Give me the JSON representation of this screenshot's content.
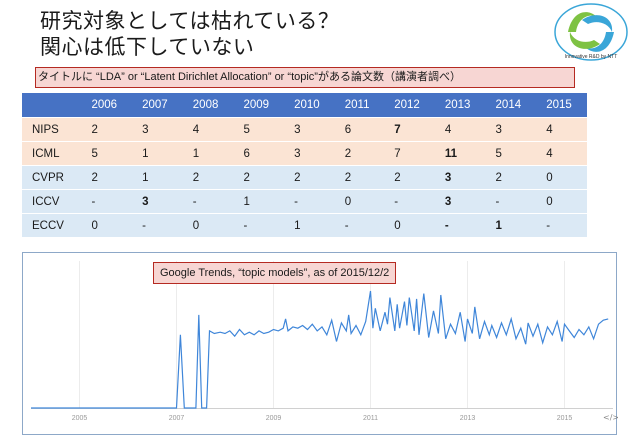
{
  "title_line1": "研究対象としては枯れている？",
  "title_line2": "関心は低下していない",
  "logo_text": "Innovative R&D by NTT",
  "note": "タイトルに “LDA” or “Latent Dirichlet Allocation” or “topic”がある論文数（講演者調べ）",
  "table": {
    "header": [
      "",
      "2006",
      "2007",
      "2008",
      "2009",
      "2010",
      "2011",
      "2012",
      "2013",
      "2014",
      "2015"
    ],
    "rows": [
      [
        "NIPS",
        "2",
        "3",
        "4",
        "5",
        "3",
        "6",
        "7",
        "4",
        "3",
        "4"
      ],
      [
        "ICML",
        "5",
        "1",
        "1",
        "6",
        "3",
        "2",
        "7",
        "11",
        "5",
        "4"
      ],
      [
        "CVPR",
        "2",
        "1",
        "2",
        "2",
        "2",
        "2",
        "2",
        "3",
        "2",
        "0"
      ],
      [
        "ICCV",
        "-",
        "3",
        "-",
        "1",
        "-",
        "0",
        "-",
        "3",
        "-",
        "0"
      ],
      [
        "ECCV",
        "0",
        "-",
        "0",
        "-",
        "1",
        "-",
        "0",
        "-",
        "1",
        "-"
      ]
    ],
    "bold": [
      [
        0,
        7
      ],
      [
        1,
        8
      ],
      [
        2,
        8
      ],
      [
        3,
        2
      ],
      [
        3,
        8
      ],
      [
        4,
        8
      ],
      [
        4,
        9
      ]
    ]
  },
  "trends_label": "Google Trends, “topic models”, as of 2015/12/2",
  "chart_data": {
    "type": "line",
    "title": "Google Trends, “topic models”, as of 2015/12/2",
    "x_ticks": [
      "2005",
      "2007",
      "2009",
      "2011",
      "2013",
      "2015"
    ],
    "x_range": [
      2004.0,
      2016.0
    ],
    "y_range": [
      0,
      100
    ],
    "series": [
      {
        "values": [
          [
            2004.0,
            0
          ],
          [
            2007.0,
            0
          ],
          [
            2007.08,
            55
          ],
          [
            2007.16,
            0
          ],
          [
            2007.4,
            0
          ],
          [
            2007.46,
            70
          ],
          [
            2007.52,
            0
          ],
          [
            2007.62,
            0
          ],
          [
            2007.68,
            58
          ],
          [
            2007.78,
            56
          ],
          [
            2007.9,
            57
          ],
          [
            2008.0,
            56
          ],
          [
            2008.1,
            58
          ],
          [
            2008.2,
            54
          ],
          [
            2008.3,
            59
          ],
          [
            2008.4,
            55
          ],
          [
            2008.5,
            57
          ],
          [
            2008.6,
            55
          ],
          [
            2008.7,
            58
          ],
          [
            2008.8,
            56
          ],
          [
            2008.9,
            57
          ],
          [
            2009.0,
            59
          ],
          [
            2009.1,
            58
          ],
          [
            2009.2,
            60
          ],
          [
            2009.25,
            67
          ],
          [
            2009.3,
            58
          ],
          [
            2009.4,
            61
          ],
          [
            2009.5,
            60
          ],
          [
            2009.6,
            62
          ],
          [
            2009.7,
            59
          ],
          [
            2009.8,
            63
          ],
          [
            2009.9,
            58
          ],
          [
            2010.0,
            61
          ],
          [
            2010.1,
            55
          ],
          [
            2010.2,
            66
          ],
          [
            2010.3,
            50
          ],
          [
            2010.4,
            64
          ],
          [
            2010.5,
            58
          ],
          [
            2010.55,
            70
          ],
          [
            2010.6,
            56
          ],
          [
            2010.7,
            62
          ],
          [
            2010.8,
            55
          ],
          [
            2010.9,
            65
          ],
          [
            2011.0,
            88
          ],
          [
            2011.05,
            60
          ],
          [
            2011.1,
            75
          ],
          [
            2011.2,
            58
          ],
          [
            2011.3,
            72
          ],
          [
            2011.35,
            63
          ],
          [
            2011.4,
            83
          ],
          [
            2011.5,
            58
          ],
          [
            2011.55,
            78
          ],
          [
            2011.6,
            60
          ],
          [
            2011.7,
            80
          ],
          [
            2011.75,
            62
          ],
          [
            2011.8,
            83
          ],
          [
            2011.9,
            58
          ],
          [
            2011.95,
            82
          ],
          [
            2012.0,
            55
          ],
          [
            2012.1,
            86
          ],
          [
            2012.2,
            53
          ],
          [
            2012.3,
            73
          ],
          [
            2012.4,
            56
          ],
          [
            2012.45,
            85
          ],
          [
            2012.55,
            52
          ],
          [
            2012.65,
            63
          ],
          [
            2012.75,
            56
          ],
          [
            2012.85,
            72
          ],
          [
            2012.95,
            50
          ],
          [
            2013.0,
            67
          ],
          [
            2013.1,
            56
          ],
          [
            2013.15,
            76
          ],
          [
            2013.25,
            52
          ],
          [
            2013.35,
            65
          ],
          [
            2013.45,
            55
          ],
          [
            2013.5,
            62
          ],
          [
            2013.6,
            53
          ],
          [
            2013.7,
            64
          ],
          [
            2013.8,
            55
          ],
          [
            2013.9,
            67
          ],
          [
            2014.0,
            52
          ],
          [
            2014.1,
            60
          ],
          [
            2014.2,
            48
          ],
          [
            2014.25,
            64
          ],
          [
            2014.35,
            54
          ],
          [
            2014.45,
            63
          ],
          [
            2014.55,
            49
          ],
          [
            2014.65,
            61
          ],
          [
            2014.75,
            55
          ],
          [
            2014.85,
            65
          ],
          [
            2014.95,
            50
          ],
          [
            2015.0,
            63
          ],
          [
            2015.1,
            58
          ],
          [
            2015.2,
            53
          ],
          [
            2015.3,
            59
          ],
          [
            2015.4,
            55
          ],
          [
            2015.5,
            61
          ],
          [
            2015.6,
            52
          ],
          [
            2015.7,
            63
          ],
          [
            2015.8,
            66
          ],
          [
            2015.9,
            67
          ]
        ]
      }
    ]
  }
}
